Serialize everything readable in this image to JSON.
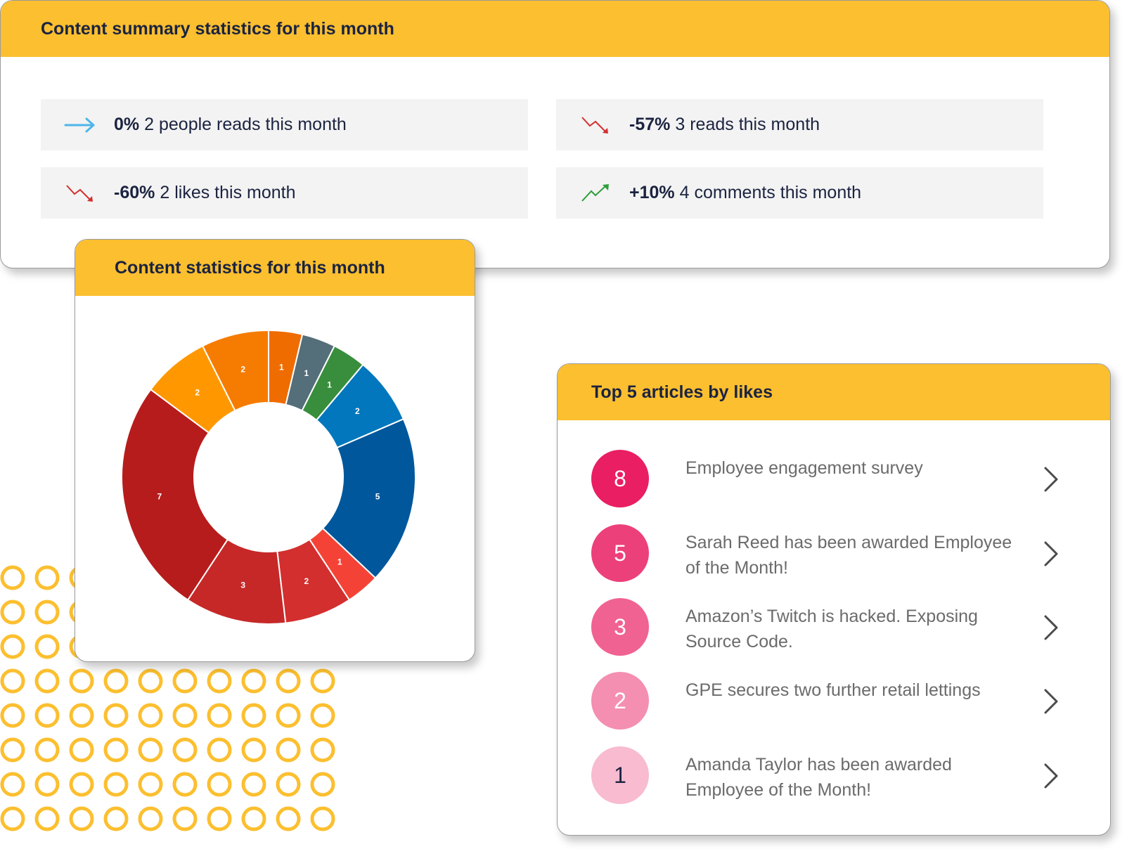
{
  "summary": {
    "title": "Content summary statistics for this month",
    "stats": [
      {
        "icon": "arrow-right-icon",
        "percent": "0%",
        "text": "2 people reads this month",
        "color": "#4db6e8"
      },
      {
        "icon": "trend-down-icon",
        "percent": "-57%",
        "text": "3 reads this month",
        "color": "#d32f2f"
      },
      {
        "icon": "trend-down-icon",
        "percent": "-60%",
        "text": "2 likes this month",
        "color": "#d32f2f"
      },
      {
        "icon": "trend-up-icon",
        "percent": "+10%",
        "text": "4 comments this month",
        "color": "#2e9e3a"
      }
    ]
  },
  "donut": {
    "title": "Content statistics for this month"
  },
  "chart_data": {
    "type": "pie",
    "donut": true,
    "values": [
      1,
      1,
      1,
      2,
      5,
      1,
      2,
      3,
      7,
      2,
      2
    ],
    "colors": [
      "#ef6c00",
      "#546e7a",
      "#388e3c",
      "#0277bd",
      "#01579b",
      "#f44336",
      "#d32f2f",
      "#c62828",
      "#b71c1c",
      "#ff9800",
      "#f57c00"
    ],
    "labels": [
      "1",
      "1",
      "1",
      "2",
      "5",
      "1",
      "2",
      "3",
      "7",
      "2",
      "2"
    ]
  },
  "top5": {
    "title": "Top 5 articles by likes",
    "articles": [
      {
        "count": "8",
        "title": "Employee engagement survey",
        "color": "#e91e63",
        "text_color": "#ffffff"
      },
      {
        "count": "5",
        "title": "Sarah Reed has been awarded Employee of the Month!",
        "color": "#ec407a",
        "text_color": "#ffffff"
      },
      {
        "count": "3",
        "title": "Amazon’s Twitch is hacked. Exposing Source Code.",
        "color": "#f06292",
        "text_color": "#ffffff"
      },
      {
        "count": "2",
        "title": "GPE secures two further retail lettings",
        "color": "#f48fb1",
        "text_color": "#ffffff"
      },
      {
        "count": "1",
        "title": "Amanda Taylor has been awarded Employee of the Month!",
        "color": "#f8bbd0",
        "text_color": "#1b2340"
      }
    ]
  }
}
